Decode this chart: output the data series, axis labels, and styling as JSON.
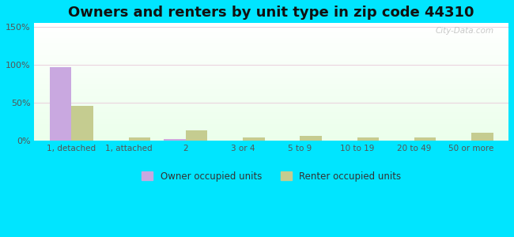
{
  "title": "Owners and renters by unit type in zip code 44310",
  "categories": [
    "1, detached",
    "1, attached",
    "2",
    "3 or 4",
    "5 to 9",
    "10 to 19",
    "20 to 49",
    "50 or more"
  ],
  "owner_values": [
    97,
    0,
    2,
    0,
    0,
    0,
    0,
    0
  ],
  "renter_values": [
    46,
    4,
    13,
    4,
    6,
    4,
    4,
    10
  ],
  "owner_color": "#c9a8e0",
  "renter_color": "#c5cc90",
  "owner_label": "Owner occupied units",
  "renter_label": "Renter occupied units",
  "ylim": [
    0,
    155
  ],
  "yticks": [
    0,
    50,
    100,
    150
  ],
  "ytick_labels": [
    "0%",
    "50%",
    "100%",
    "150%"
  ],
  "bg_outer": "#00e5ff",
  "title_fontsize": 13,
  "bar_width": 0.38
}
